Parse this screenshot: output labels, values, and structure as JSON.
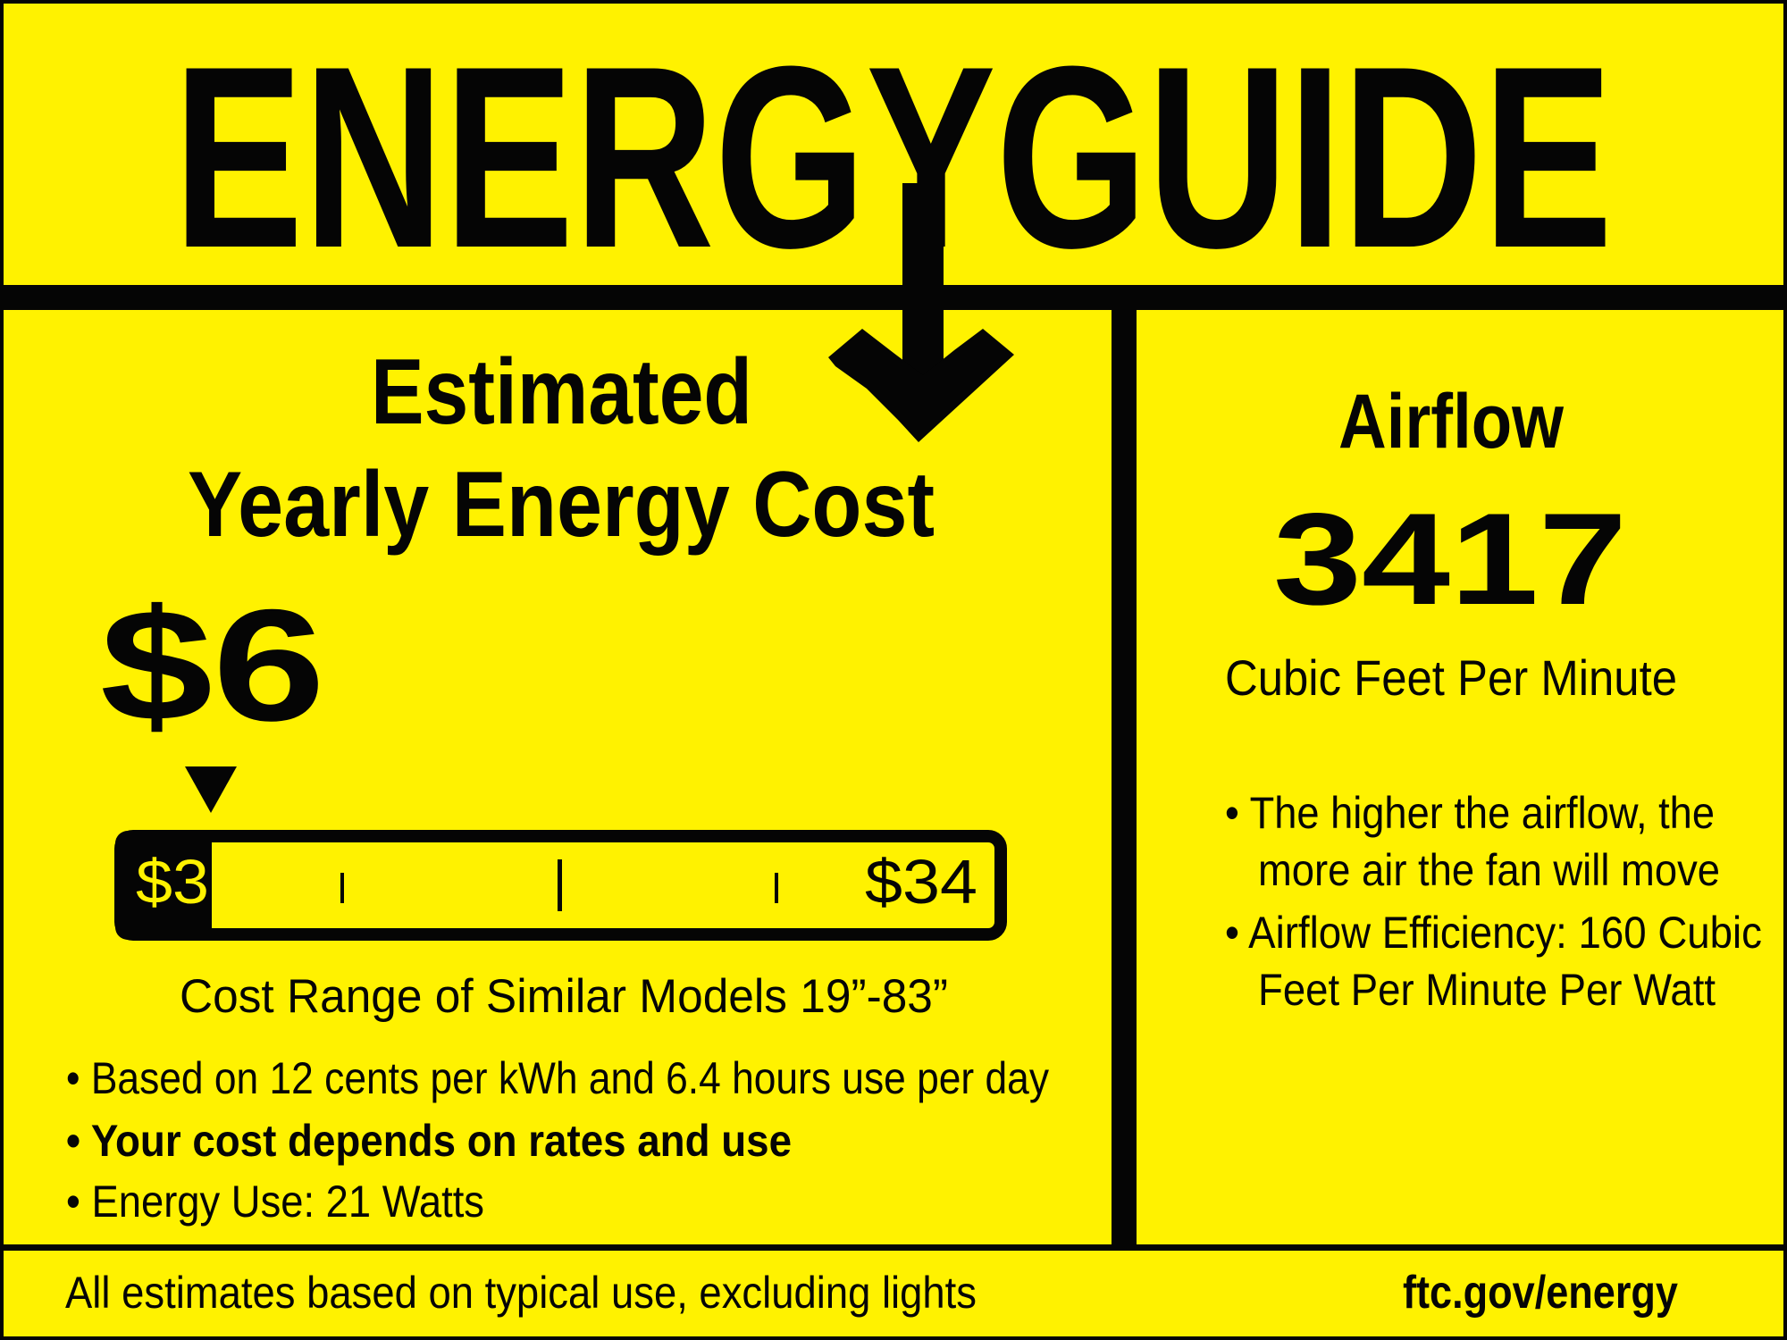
{
  "colors": {
    "background": "#fff200",
    "ink": "#050505"
  },
  "header": {
    "title": "ENERGYGUIDE",
    "arrow_icon": "arrow-down-icon"
  },
  "cost": {
    "heading_line1": "Estimated",
    "heading_line2": "Yearly Energy Cost",
    "value": "$6",
    "marker_icon": "triangle-down-icon",
    "scale": {
      "min_label": "$3",
      "max_label": "$34",
      "min": 3,
      "max": 34,
      "marker_value": 6
    },
    "range_caption": "Cost Range of Similar Models 19”-83”",
    "bullets": [
      "• Based on 12 cents per kWh and 6.4 hours use per day",
      "• Your cost depends on rates and use",
      "• Energy Use: 21 Watts"
    ]
  },
  "airflow": {
    "heading": "Airflow",
    "value": "3417",
    "unit": "Cubic Feet Per Minute",
    "bullets": [
      "• The higher the airflow, the",
      "more air the fan will move",
      "• Airflow Efficiency: 160 Cubic",
      "Feet Per Minute Per Watt"
    ]
  },
  "footer": {
    "note": "All estimates based on typical use, excluding lights",
    "link": "ftc.gov/energy"
  }
}
